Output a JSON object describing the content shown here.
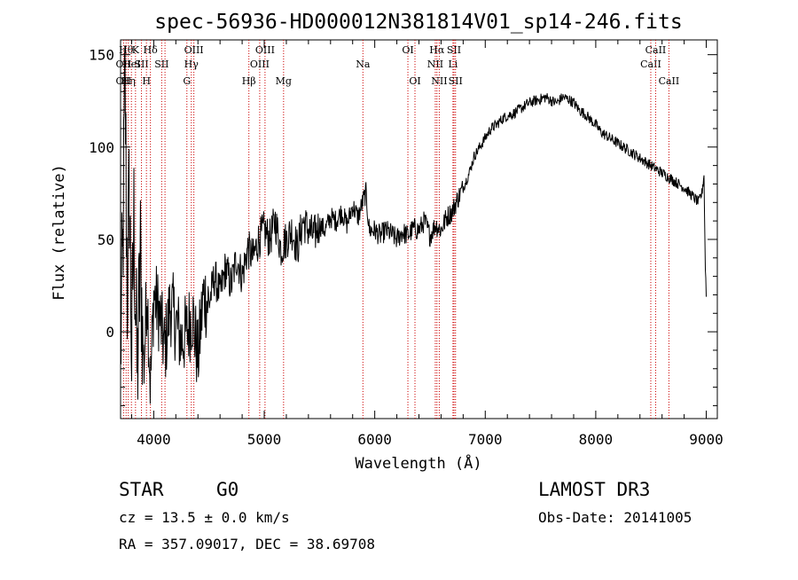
{
  "chart_data": {
    "type": "line",
    "title": "spec-56936-HD000012N381814V01_sp14-246.fits",
    "xlabel": "Wavelength (Å)",
    "ylabel": "Flux (relative)",
    "xlim": [
      3700,
      9100
    ],
    "ylim": [
      -47,
      158
    ],
    "x_ticks": [
      4000,
      5000,
      6000,
      7000,
      8000,
      9000
    ],
    "y_ticks": [
      0,
      50,
      100,
      150
    ],
    "grid": false,
    "line_color": "#000000",
    "marker_color": "#cc0000",
    "series": [
      {
        "x": [
          3700,
          3720,
          3740,
          3760,
          3780,
          3800,
          3820,
          3850,
          3880,
          3910,
          3940,
          3970,
          4000,
          4050,
          4100,
          4150,
          4200,
          4250,
          4300,
          4350,
          4400,
          4450,
          4500,
          4550,
          4600,
          4650,
          4700,
          4750,
          4800,
          4850,
          4900,
          4950,
          5000,
          5050,
          5100,
          5150,
          5200,
          5250,
          5300,
          5350,
          5400,
          5450,
          5500,
          5550,
          5600,
          5650,
          5700,
          5750,
          5800,
          5850,
          5900,
          5920,
          5950,
          6000,
          6050,
          6100,
          6150,
          6200,
          6250,
          6300,
          6350,
          6400,
          6450,
          6500,
          6550,
          6600,
          6650,
          6700,
          6750,
          6800,
          6850,
          6900,
          6950,
          7000,
          7050,
          7100,
          7150,
          7200,
          7250,
          7300,
          7350,
          7400,
          7450,
          7500,
          7550,
          7600,
          7650,
          7700,
          7750,
          7800,
          7850,
          7900,
          7950,
          8000,
          8050,
          8100,
          8150,
          8200,
          8250,
          8300,
          8350,
          8400,
          8450,
          8500,
          8550,
          8600,
          8650,
          8700,
          8750,
          8800,
          8850,
          8900,
          8930,
          8960,
          8980,
          8990,
          9000
        ],
        "y": [
          -10,
          40,
          140,
          20,
          80,
          -15,
          60,
          -25,
          40,
          -20,
          25,
          -30,
          20,
          10,
          -10,
          15,
          5,
          -5,
          0,
          10,
          -15,
          20,
          15,
          30,
          20,
          35,
          25,
          40,
          30,
          45,
          40,
          50,
          55,
          50,
          60,
          45,
          50,
          55,
          45,
          60,
          55,
          52,
          58,
          55,
          62,
          60,
          65,
          58,
          68,
          62,
          72,
          75,
          55,
          55,
          52,
          55,
          53,
          50,
          54,
          52,
          56,
          55,
          60,
          52,
          58,
          55,
          62,
          65,
          72,
          78,
          85,
          95,
          100,
          105,
          110,
          112,
          115,
          117,
          118,
          120,
          122,
          124,
          125,
          126,
          127,
          125,
          124,
          127,
          126,
          124,
          120,
          118,
          115,
          112,
          108,
          106,
          104,
          102,
          100,
          98,
          96,
          94,
          92,
          90,
          88,
          86,
          84,
          82,
          80,
          78,
          75,
          72,
          70,
          75,
          85,
          40,
          20
        ]
      }
    ],
    "line_markers": [
      {
        "x": 3727,
        "rows": [
          {
            "text": "OII",
            "row": 2
          },
          {
            "text": "OII",
            "row": 3
          }
        ]
      },
      {
        "x": 3750,
        "rows": [
          {
            "text": "Hθ",
            "row": 1
          }
        ]
      },
      {
        "x": 3770,
        "rows": [
          {
            "text": "Hη",
            "row": 3
          }
        ]
      },
      {
        "x": 3798,
        "rows": [
          {
            "text": "HeI",
            "row": 2
          }
        ]
      },
      {
        "x": 3835,
        "rows": [
          {
            "text": "K",
            "row": 1
          }
        ]
      },
      {
        "x": 3889,
        "rows": [
          {
            "text": "SII",
            "row": 2
          }
        ]
      },
      {
        "x": 3934,
        "rows": [
          {
            "text": "H",
            "row": 3
          }
        ]
      },
      {
        "x": 3970,
        "rows": [
          {
            "text": "Hδ",
            "row": 1
          }
        ]
      },
      {
        "x": 4072,
        "rows": [
          {
            "text": "SII",
            "row": 2
          }
        ]
      },
      {
        "x": 4102,
        "rows": []
      },
      {
        "x": 4300,
        "rows": [
          {
            "text": "G",
            "row": 3
          }
        ]
      },
      {
        "x": 4340,
        "rows": [
          {
            "text": "Hγ",
            "row": 2
          }
        ]
      },
      {
        "x": 4363,
        "rows": [
          {
            "text": "OIII",
            "row": 1
          }
        ]
      },
      {
        "x": 4861,
        "rows": [
          {
            "text": "Hβ",
            "row": 3
          }
        ]
      },
      {
        "x": 4959,
        "rows": [
          {
            "text": "OIII",
            "row": 2
          }
        ]
      },
      {
        "x": 5007,
        "rows": [
          {
            "text": "OIII",
            "row": 1
          }
        ]
      },
      {
        "x": 5175,
        "rows": [
          {
            "text": "Mg",
            "row": 3
          }
        ]
      },
      {
        "x": 5893,
        "rows": [
          {
            "text": "Na",
            "row": 2
          }
        ]
      },
      {
        "x": 6300,
        "rows": [
          {
            "text": "OI",
            "row": 1
          }
        ]
      },
      {
        "x": 6364,
        "rows": [
          {
            "text": "OI",
            "row": 3
          }
        ]
      },
      {
        "x": 6548,
        "rows": [
          {
            "text": "NII",
            "row": 2
          }
        ]
      },
      {
        "x": 6563,
        "rows": [
          {
            "text": "Hα",
            "row": 1
          }
        ]
      },
      {
        "x": 6584,
        "rows": [
          {
            "text": "NII",
            "row": 3
          }
        ]
      },
      {
        "x": 6708,
        "rows": [
          {
            "text": "Li",
            "row": 2
          }
        ]
      },
      {
        "x": 6717,
        "rows": [
          {
            "text": "SII",
            "row": 1
          }
        ]
      },
      {
        "x": 6731,
        "rows": [
          {
            "text": "SII",
            "row": 3
          }
        ]
      },
      {
        "x": 8498,
        "rows": [
          {
            "text": "CaII",
            "row": 2
          }
        ]
      },
      {
        "x": 8542,
        "rows": [
          {
            "text": "CaII",
            "row": 1
          }
        ]
      },
      {
        "x": 8662,
        "rows": [
          {
            "text": "CaII",
            "row": 3
          }
        ]
      }
    ]
  },
  "info": {
    "object_class": "STAR",
    "subclass": "G0",
    "release": "LAMOST DR3",
    "cz": "cz = 13.5 ± 0.0 km/s",
    "obs_date": "Obs-Date: 20141005",
    "radec": "RA = 357.09017, DEC =  38.69708"
  }
}
